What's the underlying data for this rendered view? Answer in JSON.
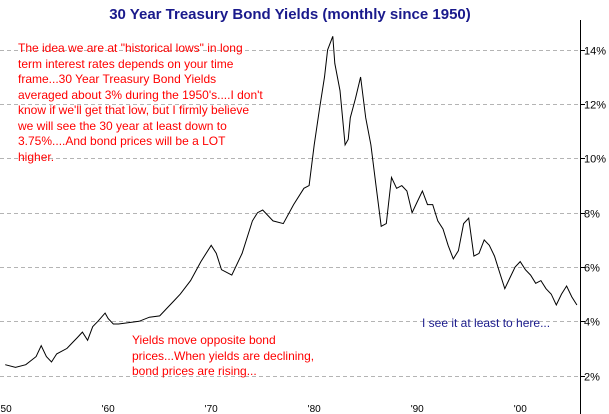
{
  "chart_data": {
    "type": "line",
    "title": "30 Year Treasury Bond Yields (monthly since 1950)",
    "y_tick_labels": [
      "2%",
      "4%",
      "6%",
      "8%",
      "10%",
      "12%",
      "14%"
    ],
    "y_ticks": [
      2,
      4,
      6,
      8,
      10,
      12,
      14
    ],
    "x_tick_labels": [
      "'50",
      "'60",
      "'70",
      "'80",
      "'90",
      "'00"
    ],
    "x_ticks": [
      1950,
      1960,
      1970,
      1980,
      1990,
      2000
    ],
    "xlim": [
      1949.5,
      2005.8
    ],
    "ylim": [
      1.1,
      15.1
    ],
    "grid": true,
    "series": [
      {
        "color": "#000000",
        "x": [
          1950,
          1951,
          1952,
          1953,
          1953.5,
          1954,
          1954.5,
          1955,
          1956,
          1956.5,
          1957,
          1957.5,
          1958,
          1958.5,
          1959,
          1959.7,
          1960,
          1960.5,
          1961,
          1962,
          1963,
          1964,
          1965,
          1966,
          1966.5,
          1967,
          1968,
          1969,
          1970,
          1970.5,
          1971,
          1972,
          1973,
          1974,
          1974.5,
          1975,
          1976,
          1977,
          1978,
          1979,
          1979.5,
          1980,
          1980.5,
          1981,
          1981.3,
          1981.8,
          1982,
          1982.5,
          1983,
          1983.3,
          1983.5,
          1984,
          1984.5,
          1985,
          1985.5,
          1986,
          1986.5,
          1987,
          1987.5,
          1988,
          1988.5,
          1989,
          1989.5,
          1990,
          1990.5,
          1991,
          1991.5,
          1992,
          1992.5,
          1993,
          1993.5,
          1994,
          1994.5,
          1995,
          1995.5,
          1996,
          1996.5,
          1997,
          1997.5,
          1998,
          1998.5,
          1999,
          1999.5,
          2000,
          2000.5,
          2001,
          2001.5,
          2002,
          2002.5,
          2003,
          2003.5,
          2004,
          2004.5,
          2005,
          2005.5
        ],
        "y": [
          2.4,
          2.3,
          2.4,
          2.7,
          3.1,
          2.7,
          2.5,
          2.8,
          3.0,
          3.2,
          3.4,
          3.6,
          3.3,
          3.8,
          4.0,
          4.3,
          4.1,
          3.9,
          3.9,
          3.95,
          4.0,
          4.15,
          4.2,
          4.6,
          4.8,
          5.0,
          5.5,
          6.2,
          6.8,
          6.5,
          5.9,
          5.7,
          6.5,
          7.7,
          8.0,
          8.1,
          7.7,
          7.6,
          8.3,
          8.9,
          9.0,
          10.5,
          11.8,
          13.0,
          14.0,
          14.5,
          13.5,
          12.5,
          10.5,
          10.7,
          11.5,
          12.2,
          13.0,
          11.5,
          10.5,
          9.0,
          7.5,
          7.6,
          9.3,
          8.9,
          9.0,
          8.8,
          8.0,
          8.4,
          8.8,
          8.3,
          8.3,
          7.7,
          7.4,
          6.8,
          6.3,
          6.6,
          7.6,
          7.8,
          6.4,
          6.5,
          7.0,
          6.8,
          6.4,
          5.8,
          5.2,
          5.6,
          6.0,
          6.2,
          5.9,
          5.7,
          5.4,
          5.5,
          5.2,
          5.0,
          4.6,
          5.0,
          5.3,
          4.9,
          4.6
        ]
      }
    ]
  },
  "annotations": {
    "note1": "The idea we are at \"historical lows\" in long term interest rates depends on your time frame...30 Year Treasury Bond Yields averaged about  3% during the 1950's....I don't know if we'll get that low, but I firmly believe we will see the 30 year at least down to 3.75%....And bond prices will be a LOT higher.",
    "note2": "Yields move opposite bond prices...When yields are declining, bond prices are rising...",
    "note3": "I see it at least to here..."
  }
}
